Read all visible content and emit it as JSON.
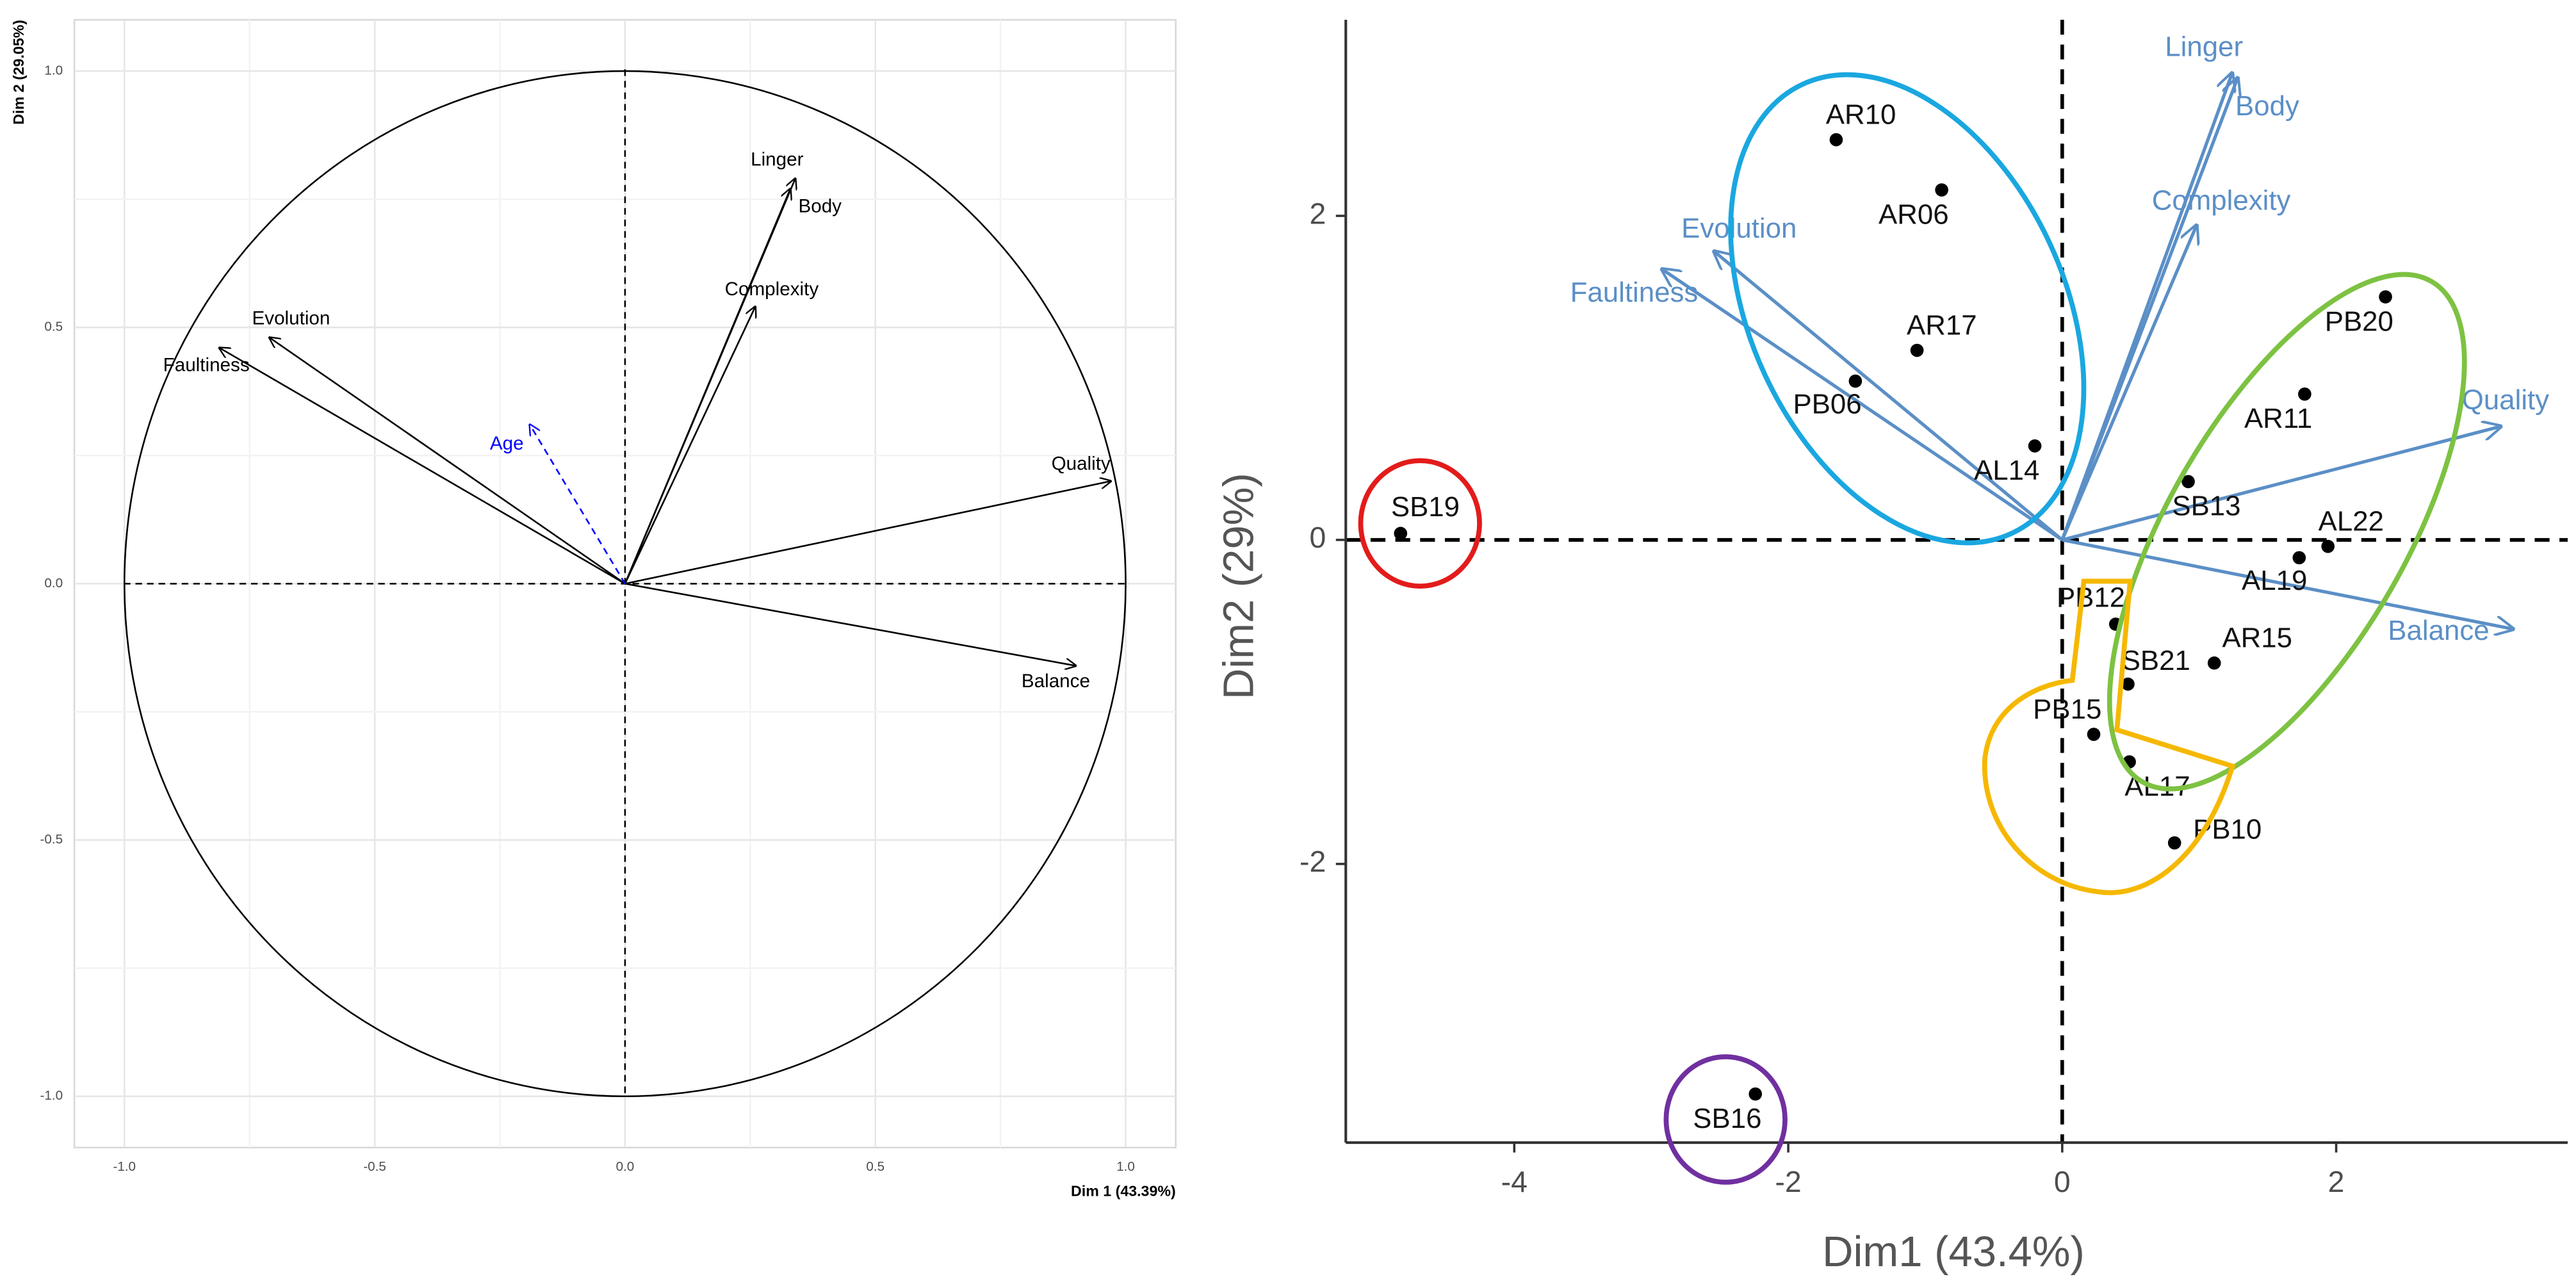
{
  "chart_data": [
    {
      "type": "correlation-circle",
      "x_label": "Dim 1 (43.39%)",
      "y_label": "Dim 2 (29.05%)",
      "xlim": [
        -1.1,
        1.1
      ],
      "ylim": [
        -1.1,
        1.1
      ],
      "xticks": [
        {
          "value": -1,
          "label": "-1.0"
        },
        {
          "value": -0.5,
          "label": "-0.5"
        },
        {
          "value": 0,
          "label": "0.0"
        },
        {
          "value": 0.5,
          "label": "0.5"
        },
        {
          "value": 1,
          "label": "1.0"
        }
      ],
      "yticks": [
        {
          "value": -1,
          "label": "-1.0"
        },
        {
          "value": -0.5,
          "label": "-0.5"
        },
        {
          "value": 0,
          "label": "0.0"
        },
        {
          "value": 0.5,
          "label": "0.5"
        },
        {
          "value": 1,
          "label": "1.0"
        }
      ],
      "grid": true,
      "vectors": {
        "color": "#000000",
        "labels": [
          "Linger",
          "Body",
          "Complexity",
          "Evolution",
          "Faultiness",
          "Quality",
          "Balance"
        ],
        "x": [
          0.34,
          0.33,
          0.26,
          -0.71,
          -0.81,
          0.97,
          0.9
        ],
        "y": [
          0.79,
          0.77,
          0.54,
          0.48,
          0.46,
          0.2,
          -0.16
        ]
      },
      "supplementary": {
        "color": "#0000ff",
        "labels": [
          "Age"
        ],
        "x": [
          -0.19
        ],
        "y": [
          0.31
        ]
      }
    },
    {
      "type": "biplot",
      "x_label": "Dim1 (43.4%)",
      "y_label": "Dim2 (29%)",
      "xlim": [
        -5.23,
        3.69
      ],
      "ylim": [
        -3.72,
        3.21
      ],
      "xticks": [
        -4,
        -2,
        0,
        2
      ],
      "yticks": [
        -2,
        0,
        2
      ],
      "grid": false,
      "points": {
        "color": "#000000",
        "labels": [
          "SB19",
          "SB16",
          "AR10",
          "AR06",
          "AR17",
          "PB06",
          "AL14",
          "PB20",
          "AR11",
          "SB13",
          "AL22",
          "AL19",
          "AR15",
          "PB12",
          "SB21",
          "PB15",
          "AL17",
          "PB10"
        ],
        "x": [
          -4.83,
          -2.24,
          -1.65,
          -0.88,
          -1.06,
          -1.51,
          -0.2,
          2.36,
          1.77,
          0.92,
          1.94,
          1.73,
          1.11,
          0.39,
          0.48,
          0.23,
          0.49,
          0.82
        ],
        "y": [
          0.04,
          -3.42,
          2.47,
          2.16,
          1.17,
          0.98,
          0.58,
          1.5,
          0.9,
          0.36,
          -0.04,
          -0.11,
          -0.76,
          -0.52,
          -0.89,
          -1.2,
          -1.37,
          -1.87
        ]
      },
      "vectors": {
        "color": "#5b8fc6",
        "labels": [
          "Linger",
          "Body",
          "Complexity",
          "Evolution",
          "Faultiness",
          "Quality",
          "Balance"
        ],
        "x": [
          1.24,
          1.28,
          0.98,
          -2.54,
          -2.92,
          3.2,
          3.29
        ],
        "y": [
          2.88,
          2.85,
          1.94,
          1.78,
          1.67,
          0.7,
          -0.55
        ]
      }
    }
  ]
}
